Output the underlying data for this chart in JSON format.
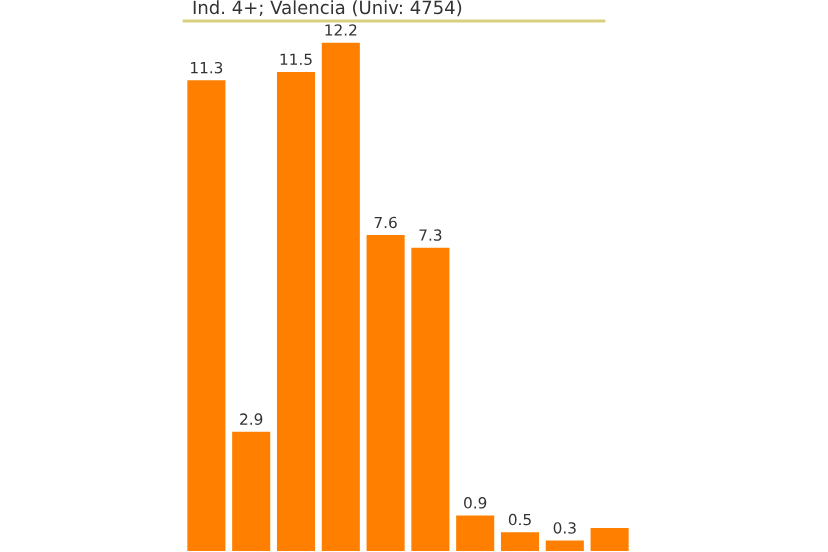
{
  "chart_data": {
    "type": "bar",
    "title": "Ind. 4+; Valencia (Univ: 4754)",
    "categories": [
      null,
      null,
      null,
      null,
      null,
      null,
      null,
      null,
      null,
      null
    ],
    "values": [
      11.3,
      2.9,
      11.5,
      12.2,
      7.6,
      7.3,
      0.9,
      0.5,
      0.3,
      0.6
    ],
    "value_labels": [
      "11.3",
      "2.9",
      "11.5",
      "12.2",
      "7.6",
      "7.3",
      "0.9",
      "0.5",
      "0.3",
      null
    ],
    "color": "#ff8000",
    "grid": false
  }
}
